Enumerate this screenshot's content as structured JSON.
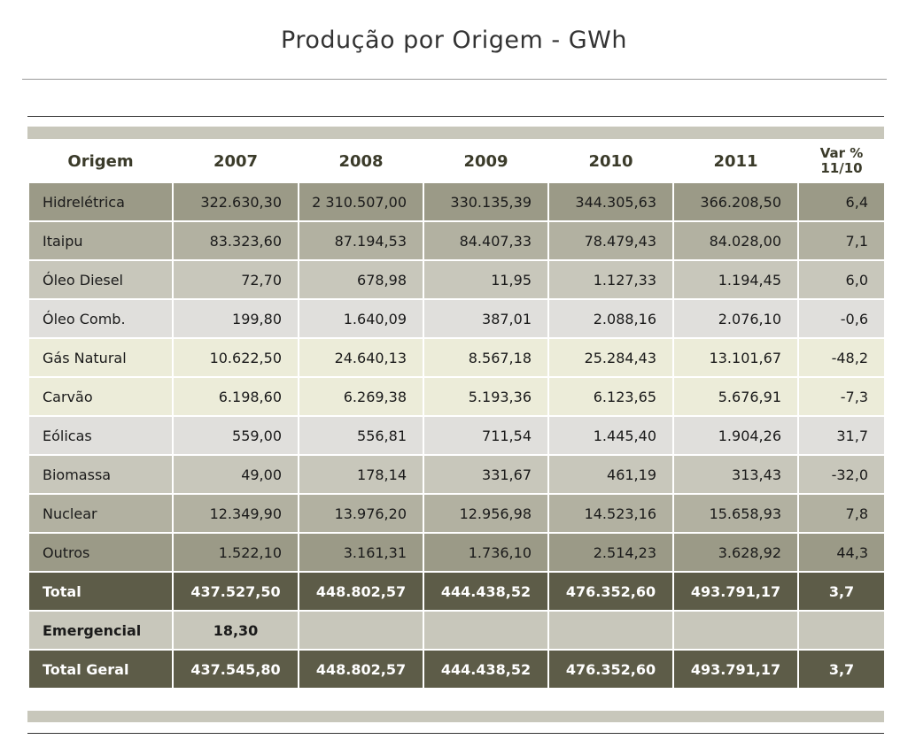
{
  "title": "Produção por Origem - GWh",
  "colors": {
    "dark": "#9b9a87",
    "mid": "#b2b1a1",
    "light": "#c8c7bb",
    "lightgray": "#e0dfdc",
    "pale": "#ececd9",
    "total": "#5d5c48"
  },
  "table": {
    "headers": [
      "Origem",
      "2007",
      "2008",
      "2009",
      "2010",
      "2011",
      "Var % 11/10"
    ],
    "rows": [
      {
        "label": "Hidrelétrica",
        "values": [
          "322.630,30",
          "2 310.507,00",
          "330.135,39",
          "344.305,63",
          "366.208,50",
          "6,4"
        ],
        "shade": "dark"
      },
      {
        "label": "Itaipu",
        "values": [
          "83.323,60",
          "87.194,53",
          "84.407,33",
          "78.479,43",
          "84.028,00",
          "7,1"
        ],
        "shade": "mid"
      },
      {
        "label": "Óleo Diesel",
        "values": [
          "72,70",
          "678,98",
          "11,95",
          "1.127,33",
          "1.194,45",
          "6,0"
        ],
        "shade": "light"
      },
      {
        "label": "Óleo Comb.",
        "values": [
          "199,80",
          "1.640,09",
          "387,01",
          "2.088,16",
          "2.076,10",
          "-0,6"
        ],
        "shade": "lightgray"
      },
      {
        "label": "Gás Natural",
        "values": [
          "10.622,50",
          "24.640,13",
          "8.567,18",
          "25.284,43",
          "13.101,67",
          "-48,2"
        ],
        "shade": "pale"
      },
      {
        "label": "Carvão",
        "values": [
          "6.198,60",
          "6.269,38",
          "5.193,36",
          "6.123,65",
          "5.676,91",
          "-7,3"
        ],
        "shade": "pale"
      },
      {
        "label": "Eólicas",
        "values": [
          "559,00",
          "556,81",
          "711,54",
          "1.445,40",
          "1.904,26",
          "31,7"
        ],
        "shade": "lightgray"
      },
      {
        "label": "Biomassa",
        "values": [
          "49,00",
          "178,14",
          "331,67",
          "461,19",
          "313,43",
          "-32,0"
        ],
        "shade": "light"
      },
      {
        "label": "Nuclear",
        "values": [
          "12.349,90",
          "13.976,20",
          "12.956,98",
          "14.523,16",
          "15.658,93",
          "7,8"
        ],
        "shade": "mid"
      },
      {
        "label": "Outros",
        "values": [
          "1.522,10",
          "3.161,31",
          "1.736,10",
          "2.514,23",
          "3.628,92",
          "44,3"
        ],
        "shade": "dark"
      }
    ],
    "total": {
      "label": "Total",
      "values": [
        "437.527,50",
        "448.802,57",
        "444.438,52",
        "476.352,60",
        "493.791,17",
        "3,7"
      ]
    },
    "emergencial": {
      "label": "Emergencial",
      "values": [
        "18,30",
        "",
        "",
        "",
        "",
        ""
      ]
    },
    "total_geral": {
      "label": "Total Geral",
      "values": [
        "437.545,80",
        "448.802,57",
        "444.438,52",
        "476.352,60",
        "493.791,17",
        "3,7"
      ]
    }
  }
}
